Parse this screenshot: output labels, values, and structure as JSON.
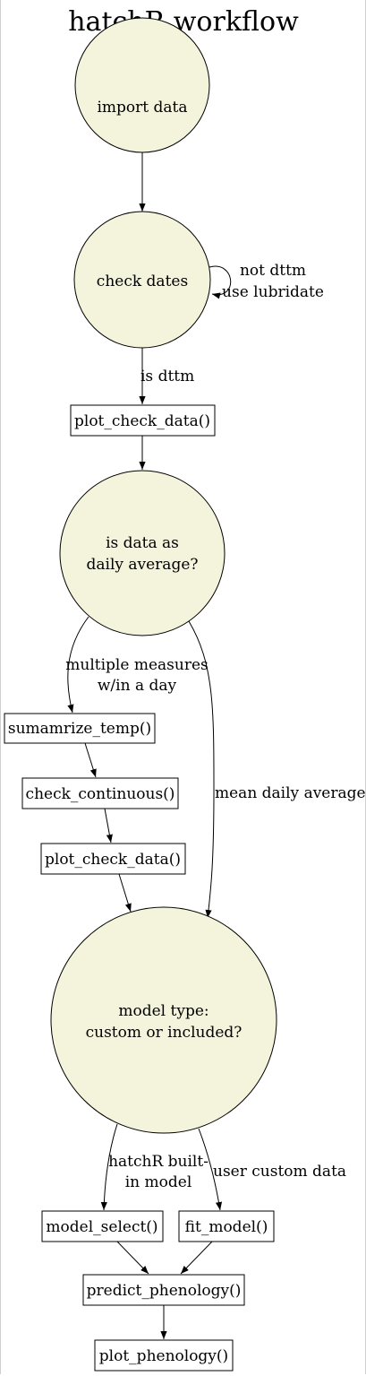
{
  "title": "hatchR workflow",
  "nodes": {
    "import_data": "import data",
    "check_dates": "check dates",
    "plot_check_data_1": "plot_check_data()",
    "is_daily_line1": "is data as",
    "is_daily_line2": "daily average?",
    "summarize_temp": "sumamrize_temp()",
    "check_continuous": "check_continuous()",
    "plot_check_data_2": "plot_check_data()",
    "model_type_line1": "model type:",
    "model_type_line2": "custom or included?",
    "model_select": "model_select()",
    "fit_model": "fit_model()",
    "predict_phenology": "predict_phenology()",
    "plot_phenology": "plot_phenology()"
  },
  "edges": {
    "not_dttm_line1": "not dttm",
    "not_dttm_line2": "use lubridate",
    "is_dttm": "is dttm",
    "multiple_line1": "multiple measures",
    "multiple_line2": "w/in a day",
    "mean_daily": "mean daily average",
    "builtin_line1": "hatchR built-",
    "builtin_line2": "in model",
    "user_custom": "user custom data"
  },
  "colors": {
    "node_fill": "#f4f3db",
    "stroke": "#000000",
    "background": "#ffffff"
  }
}
